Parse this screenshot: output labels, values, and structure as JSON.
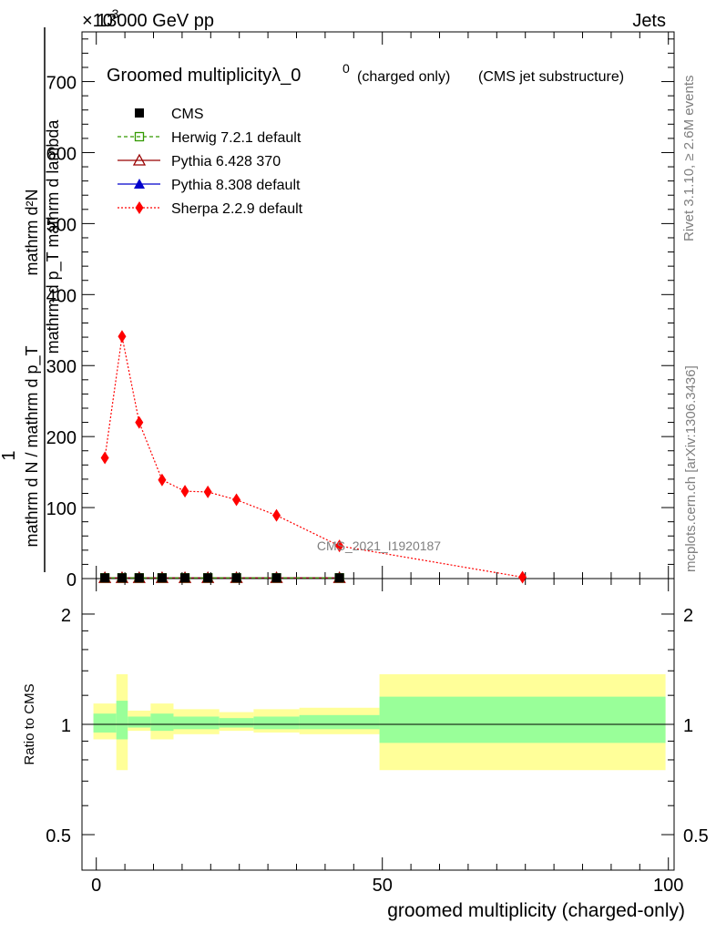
{
  "header": {
    "scale_prefix": "×10",
    "scale_exp": "-3",
    "energy": "13000 GeV pp",
    "category": "Jets"
  },
  "side_labels": {
    "rivet": "Rivet 3.1.10, ≥ 2.6M events",
    "site": "mcplots.cern.ch [arXiv:1306.3436]"
  },
  "analysis_tag": "CMS_2021_I1920187",
  "chart_data": [
    {
      "type": "line",
      "title": "Groomed multiplicityλ_0",
      "title_sup": "0",
      "title_suffix1": "(charged only)",
      "title_suffix2": "(CMS jet substructure)",
      "ylabel_numerator": "mathrm d²N",
      "ylabel_denominator": "mathrm d p_T mathrm d lambda",
      "ylabel_prefix": "1",
      "ylabel_prefix_den": "mathrm d N / mathrm d p_T",
      "xlim": [
        -2.5,
        101
      ],
      "ylim": [
        0,
        770
      ],
      "yticks": [
        0,
        100,
        200,
        300,
        400,
        500,
        600,
        700
      ],
      "legend_position": "top-left",
      "series": [
        {
          "name": "CMS",
          "color": "#000000",
          "marker": "square-filled",
          "x": [
            1.5,
            4.5,
            7.5,
            11.5,
            15.5,
            19.5,
            24.5,
            31.5,
            42.5
          ],
          "y": [
            1,
            1,
            1,
            1,
            1,
            1,
            1,
            1,
            1
          ]
        },
        {
          "name": "Herwig 7.2.1 default",
          "color": "#339900",
          "marker": "square-open",
          "line": "dashed",
          "x": [
            1.5,
            4.5,
            7.5,
            11.5,
            15.5,
            19.5,
            24.5,
            31.5,
            42.5
          ],
          "y": [
            1,
            1,
            1,
            1,
            1,
            1,
            1,
            1,
            1
          ]
        },
        {
          "name": "Pythia 6.428 370",
          "color": "#990000",
          "marker": "triangle-open",
          "line": "solid",
          "x": [
            1.5,
            4.5,
            7.5,
            11.5,
            15.5,
            19.5,
            24.5,
            31.5,
            42.5
          ],
          "y": [
            1,
            1,
            1,
            1,
            1,
            1,
            1,
            1,
            1
          ]
        },
        {
          "name": "Pythia 8.308 default",
          "color": "#0000cc",
          "marker": "triangle-filled",
          "line": "solid",
          "x": [
            1.5,
            4.5,
            7.5,
            11.5,
            15.5,
            19.5,
            24.5,
            31.5,
            42.5
          ],
          "y": [
            1,
            1,
            1,
            1,
            1,
            1,
            1,
            1,
            1
          ]
        },
        {
          "name": "Sherpa 2.2.9 default",
          "color": "#ff0000",
          "marker": "diamond-filled",
          "line": "dotted",
          "x": [
            1.5,
            4.5,
            7.5,
            11.5,
            15.5,
            19.5,
            24.5,
            31.5,
            42.5,
            74.5
          ],
          "y": [
            170,
            341,
            220,
            139,
            123,
            122,
            111,
            89,
            46,
            2
          ]
        }
      ]
    },
    {
      "type": "area",
      "ylabel": "Ratio to CMS",
      "xlabel": "groomed multiplicity (charged-only)",
      "ylog": true,
      "ylim": [
        0.4,
        2.5
      ],
      "yticks": [
        0.5,
        1,
        2
      ],
      "xticks": [
        0,
        50,
        100
      ],
      "bands": [
        {
          "x0": -0.5,
          "x1": 3.5,
          "y_lo": 0.91,
          "y_hi": 1.14,
          "stat_lo": 0.95,
          "stat_hi": 1.07
        },
        {
          "x0": 3.5,
          "x1": 5.5,
          "y_lo": 0.75,
          "y_hi": 1.37,
          "stat_lo": 0.91,
          "stat_hi": 1.16
        },
        {
          "x0": 5.5,
          "x1": 9.5,
          "y_lo": 0.96,
          "y_hi": 1.09,
          "stat_lo": 0.98,
          "stat_hi": 1.05
        },
        {
          "x0": 9.5,
          "x1": 13.5,
          "y_lo": 0.91,
          "y_hi": 1.14,
          "stat_lo": 0.96,
          "stat_hi": 1.07
        },
        {
          "x0": 13.5,
          "x1": 21.5,
          "y_lo": 0.94,
          "y_hi": 1.1,
          "stat_lo": 0.97,
          "stat_hi": 1.05
        },
        {
          "x0": 21.5,
          "x1": 27.5,
          "y_lo": 0.96,
          "y_hi": 1.08,
          "stat_lo": 0.98,
          "stat_hi": 1.04
        },
        {
          "x0": 27.5,
          "x1": 35.5,
          "y_lo": 0.95,
          "y_hi": 1.1,
          "stat_lo": 0.97,
          "stat_hi": 1.05
        },
        {
          "x0": 35.5,
          "x1": 49.5,
          "y_lo": 0.94,
          "y_hi": 1.11,
          "stat_lo": 0.97,
          "stat_hi": 1.06
        },
        {
          "x0": 49.5,
          "x1": 99.5,
          "y_lo": 0.75,
          "y_hi": 1.37,
          "stat_lo": 0.89,
          "stat_hi": 1.19
        }
      ],
      "band_colors": {
        "syst": "#ffff99",
        "stat": "#99ff99"
      }
    }
  ]
}
